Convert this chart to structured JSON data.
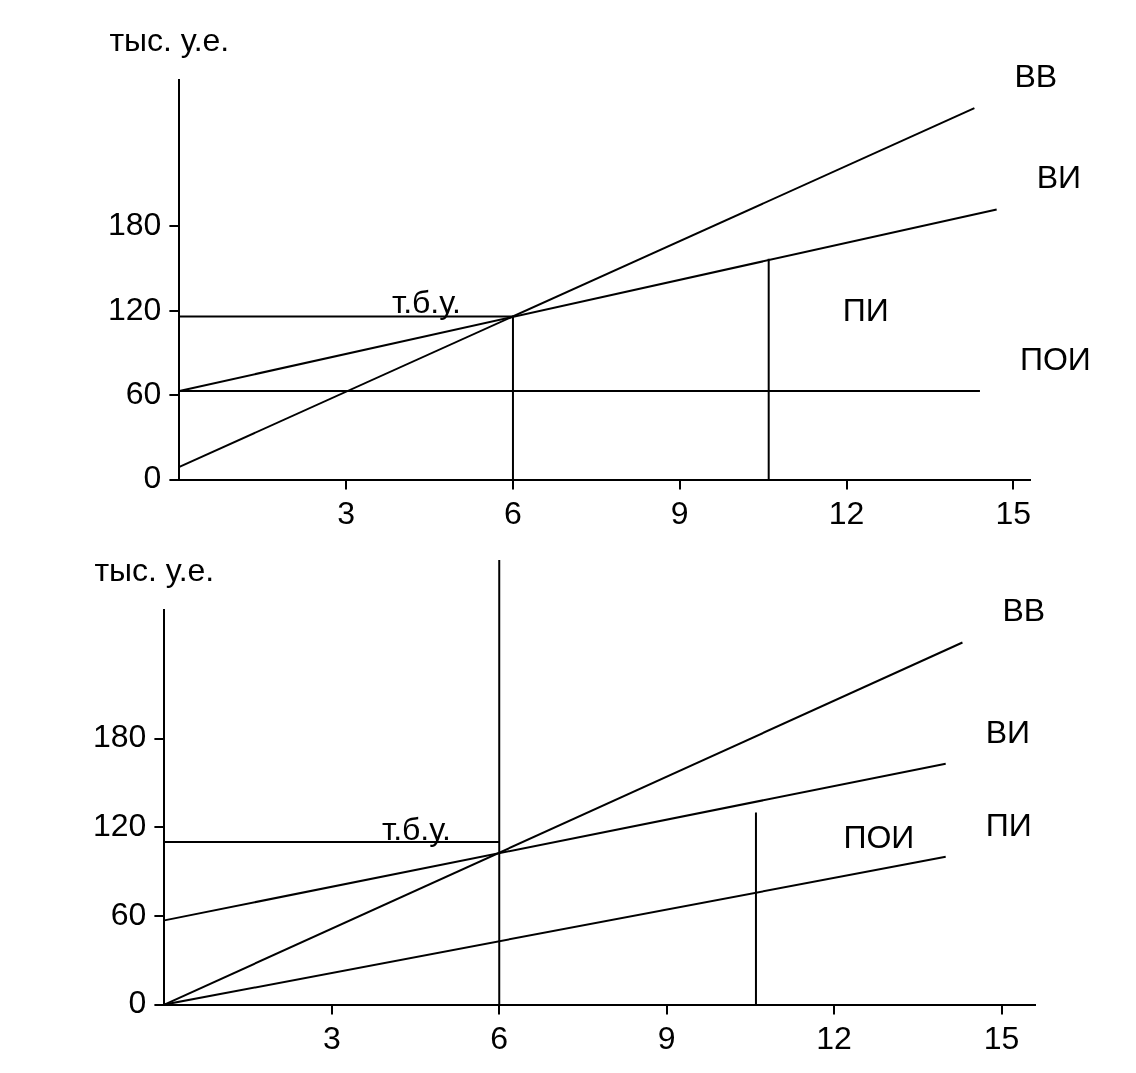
{
  "chart_data": [
    {
      "type": "line",
      "ylabel": "тыс. у.е.",
      "xlim": [
        0,
        15.3
      ],
      "ylim": [
        0,
        284
      ],
      "xticks": [
        3,
        6,
        9,
        12,
        15
      ],
      "yticks": [
        0,
        60,
        120,
        180
      ],
      "series": [
        {
          "name": "ВВ",
          "color": "#000000",
          "x": [
            0,
            14.3
          ],
          "values": [
            9,
            264
          ]
        },
        {
          "name": "ВИ",
          "color": "#000000",
          "x": [
            0,
            14.7
          ],
          "values": [
            63,
            192
          ]
        },
        {
          "name": "ПОИ",
          "color": "#000000",
          "x": [
            0,
            14.4
          ],
          "values": [
            63,
            63
          ]
        },
        {
          "color": "#000000",
          "x": [
            0,
            6
          ],
          "values": [
            116,
            116
          ]
        },
        {
          "color": "#000000",
          "x": [
            6,
            6
          ],
          "values": [
            116,
            0
          ]
        },
        {
          "color": "#000000",
          "x": [
            10.6,
            10.6
          ],
          "values": [
            0,
            157
          ]
        }
      ],
      "annotations": [
        "т.б.у.",
        "ПИ"
      ],
      "grid": false,
      "legend": false,
      "marker": "none"
    },
    {
      "type": "line",
      "ylabel": "тыс. у.е.",
      "xlim": [
        0,
        15.6
      ],
      "ylim": [
        0,
        267
      ],
      "xticks": [
        3,
        6,
        9,
        12,
        15
      ],
      "yticks": [
        0,
        60,
        120,
        180
      ],
      "series": [
        {
          "name": "ВВ",
          "color": "#000000",
          "x": [
            0,
            14.3
          ],
          "values": [
            0,
            245
          ]
        },
        {
          "name": "ВИ",
          "color": "#000000",
          "x": [
            0,
            14
          ],
          "values": [
            57,
            163
          ]
        },
        {
          "name": "ПИ",
          "color": "#000000",
          "x": [
            0,
            14
          ],
          "values": [
            0,
            100
          ]
        },
        {
          "color": "#000000",
          "x": [
            0,
            6
          ],
          "values": [
            110,
            110
          ]
        },
        {
          "color": "#000000",
          "x": [
            10.6,
            10.6
          ],
          "values": [
            0,
            130
          ]
        }
      ],
      "ref_lines": [
        {
          "axis": "x",
          "value": 6,
          "color": "#000000"
        }
      ],
      "annotations": [
        "т.б.у.",
        "ПОИ"
      ],
      "grid": false,
      "legend": false,
      "marker": "none"
    }
  ]
}
